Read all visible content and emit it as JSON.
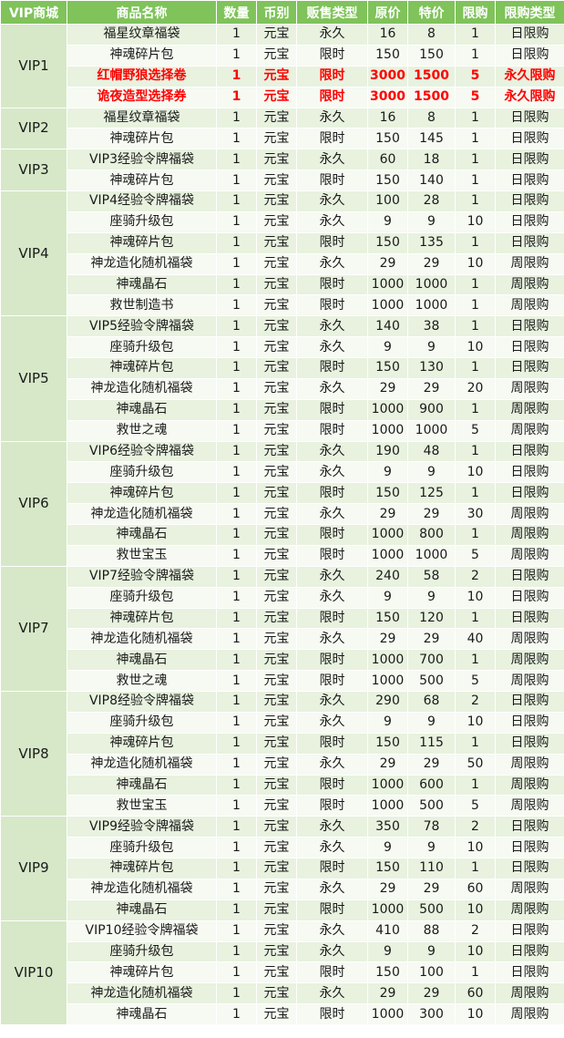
{
  "headers": [
    "VIP商城",
    "商品名称",
    "数量",
    "币别",
    "贩售类型",
    "原价",
    "特价",
    "限购",
    "限购类型"
  ],
  "colors": {
    "header_bg": "#7fc35a",
    "highlight_text": "#ff0000",
    "row_odd": "#e8f2df",
    "row_even": "#f6faf2"
  },
  "groups": [
    {
      "vip": "VIP1",
      "rows": [
        {
          "name": "福星纹章福袋",
          "qty": "1",
          "currency": "元宝",
          "sale_type": "永久",
          "orig": "16",
          "special": "8",
          "limit": "1",
          "limit_type": "日限购",
          "highlight": false
        },
        {
          "name": "神魂碎片包",
          "qty": "1",
          "currency": "元宝",
          "sale_type": "限时",
          "orig": "150",
          "special": "150",
          "limit": "1",
          "limit_type": "日限购",
          "highlight": false
        },
        {
          "name": "红帽野狼选择卷",
          "qty": "1",
          "currency": "元宝",
          "sale_type": "限时",
          "orig": "3000",
          "special": "1500",
          "limit": "5",
          "limit_type": "永久限购",
          "highlight": true
        },
        {
          "name": "诡夜造型选择券",
          "qty": "1",
          "currency": "元宝",
          "sale_type": "限时",
          "orig": "3000",
          "special": "1500",
          "limit": "5",
          "limit_type": "永久限购",
          "highlight": true
        }
      ]
    },
    {
      "vip": "VIP2",
      "rows": [
        {
          "name": "福星纹章福袋",
          "qty": "1",
          "currency": "元宝",
          "sale_type": "永久",
          "orig": "16",
          "special": "8",
          "limit": "1",
          "limit_type": "日限购",
          "highlight": false
        },
        {
          "name": "神魂碎片包",
          "qty": "1",
          "currency": "元宝",
          "sale_type": "限时",
          "orig": "150",
          "special": "145",
          "limit": "1",
          "limit_type": "日限购",
          "highlight": false
        }
      ]
    },
    {
      "vip": "VIP3",
      "rows": [
        {
          "name": "VIP3经验令牌福袋",
          "qty": "1",
          "currency": "元宝",
          "sale_type": "永久",
          "orig": "60",
          "special": "18",
          "limit": "1",
          "limit_type": "日限购",
          "highlight": false
        },
        {
          "name": "神魂碎片包",
          "qty": "1",
          "currency": "元宝",
          "sale_type": "限时",
          "orig": "150",
          "special": "140",
          "limit": "1",
          "limit_type": "日限购",
          "highlight": false
        }
      ]
    },
    {
      "vip": "VIP4",
      "rows": [
        {
          "name": "VIP4经验令牌福袋",
          "qty": "1",
          "currency": "元宝",
          "sale_type": "永久",
          "orig": "100",
          "special": "28",
          "limit": "1",
          "limit_type": "日限购",
          "highlight": false
        },
        {
          "name": "座骑升级包",
          "qty": "1",
          "currency": "元宝",
          "sale_type": "永久",
          "orig": "9",
          "special": "9",
          "limit": "10",
          "limit_type": "日限购",
          "highlight": false
        },
        {
          "name": "神魂碎片包",
          "qty": "1",
          "currency": "元宝",
          "sale_type": "限时",
          "orig": "150",
          "special": "135",
          "limit": "1",
          "limit_type": "日限购",
          "highlight": false
        },
        {
          "name": "神龙造化随机福袋",
          "qty": "1",
          "currency": "元宝",
          "sale_type": "永久",
          "orig": "29",
          "special": "29",
          "limit": "10",
          "limit_type": "周限购",
          "highlight": false
        },
        {
          "name": "神魂晶石",
          "qty": "1",
          "currency": "元宝",
          "sale_type": "限时",
          "orig": "1000",
          "special": "1000",
          "limit": "1",
          "limit_type": "周限购",
          "highlight": false
        },
        {
          "name": "救世制造书",
          "qty": "1",
          "currency": "元宝",
          "sale_type": "限时",
          "orig": "1000",
          "special": "1000",
          "limit": "1",
          "limit_type": "周限购",
          "highlight": false
        }
      ]
    },
    {
      "vip": "VIP5",
      "rows": [
        {
          "name": "VIP5经验令牌福袋",
          "qty": "1",
          "currency": "元宝",
          "sale_type": "永久",
          "orig": "140",
          "special": "38",
          "limit": "1",
          "limit_type": "日限购",
          "highlight": false
        },
        {
          "name": "座骑升级包",
          "qty": "1",
          "currency": "元宝",
          "sale_type": "永久",
          "orig": "9",
          "special": "9",
          "limit": "10",
          "limit_type": "日限购",
          "highlight": false
        },
        {
          "name": "神魂碎片包",
          "qty": "1",
          "currency": "元宝",
          "sale_type": "限时",
          "orig": "150",
          "special": "130",
          "limit": "1",
          "limit_type": "日限购",
          "highlight": false
        },
        {
          "name": "神龙造化随机福袋",
          "qty": "1",
          "currency": "元宝",
          "sale_type": "永久",
          "orig": "29",
          "special": "29",
          "limit": "20",
          "limit_type": "周限购",
          "highlight": false
        },
        {
          "name": "神魂晶石",
          "qty": "1",
          "currency": "元宝",
          "sale_type": "限时",
          "orig": "1000",
          "special": "900",
          "limit": "1",
          "limit_type": "周限购",
          "highlight": false
        },
        {
          "name": "救世之魂",
          "qty": "1",
          "currency": "元宝",
          "sale_type": "限时",
          "orig": "1000",
          "special": "1000",
          "limit": "5",
          "limit_type": "周限购",
          "highlight": false
        }
      ]
    },
    {
      "vip": "VIP6",
      "rows": [
        {
          "name": "VIP6经验令牌福袋",
          "qty": "1",
          "currency": "元宝",
          "sale_type": "永久",
          "orig": "190",
          "special": "48",
          "limit": "1",
          "limit_type": "日限购",
          "highlight": false
        },
        {
          "name": "座骑升级包",
          "qty": "1",
          "currency": "元宝",
          "sale_type": "永久",
          "orig": "9",
          "special": "9",
          "limit": "10",
          "limit_type": "日限购",
          "highlight": false
        },
        {
          "name": "神魂碎片包",
          "qty": "1",
          "currency": "元宝",
          "sale_type": "限时",
          "orig": "150",
          "special": "125",
          "limit": "1",
          "limit_type": "日限购",
          "highlight": false
        },
        {
          "name": "神龙造化随机福袋",
          "qty": "1",
          "currency": "元宝",
          "sale_type": "永久",
          "orig": "29",
          "special": "29",
          "limit": "30",
          "limit_type": "周限购",
          "highlight": false
        },
        {
          "name": "神魂晶石",
          "qty": "1",
          "currency": "元宝",
          "sale_type": "限时",
          "orig": "1000",
          "special": "800",
          "limit": "1",
          "limit_type": "周限购",
          "highlight": false
        },
        {
          "name": "救世宝玉",
          "qty": "1",
          "currency": "元宝",
          "sale_type": "限时",
          "orig": "1000",
          "special": "1000",
          "limit": "5",
          "limit_type": "周限购",
          "highlight": false
        }
      ]
    },
    {
      "vip": "VIP7",
      "rows": [
        {
          "name": "VIP7经验令牌福袋",
          "qty": "1",
          "currency": "元宝",
          "sale_type": "永久",
          "orig": "240",
          "special": "58",
          "limit": "2",
          "limit_type": "日限购",
          "highlight": false
        },
        {
          "name": "座骑升级包",
          "qty": "1",
          "currency": "元宝",
          "sale_type": "永久",
          "orig": "9",
          "special": "9",
          "limit": "10",
          "limit_type": "日限购",
          "highlight": false
        },
        {
          "name": "神魂碎片包",
          "qty": "1",
          "currency": "元宝",
          "sale_type": "限时",
          "orig": "150",
          "special": "120",
          "limit": "1",
          "limit_type": "日限购",
          "highlight": false
        },
        {
          "name": "神龙造化随机福袋",
          "qty": "1",
          "currency": "元宝",
          "sale_type": "永久",
          "orig": "29",
          "special": "29",
          "limit": "40",
          "limit_type": "周限购",
          "highlight": false
        },
        {
          "name": "神魂晶石",
          "qty": "1",
          "currency": "元宝",
          "sale_type": "限时",
          "orig": "1000",
          "special": "700",
          "limit": "1",
          "limit_type": "周限购",
          "highlight": false
        },
        {
          "name": "救世之魂",
          "qty": "1",
          "currency": "元宝",
          "sale_type": "限时",
          "orig": "1000",
          "special": "500",
          "limit": "5",
          "limit_type": "周限购",
          "highlight": false
        }
      ]
    },
    {
      "vip": "VIP8",
      "rows": [
        {
          "name": "VIP8经验令牌福袋",
          "qty": "1",
          "currency": "元宝",
          "sale_type": "永久",
          "orig": "290",
          "special": "68",
          "limit": "2",
          "limit_type": "日限购",
          "highlight": false
        },
        {
          "name": "座骑升级包",
          "qty": "1",
          "currency": "元宝",
          "sale_type": "永久",
          "orig": "9",
          "special": "9",
          "limit": "10",
          "limit_type": "日限购",
          "highlight": false
        },
        {
          "name": "神魂碎片包",
          "qty": "1",
          "currency": "元宝",
          "sale_type": "限时",
          "orig": "150",
          "special": "115",
          "limit": "1",
          "limit_type": "日限购",
          "highlight": false
        },
        {
          "name": "神龙造化随机福袋",
          "qty": "1",
          "currency": "元宝",
          "sale_type": "永久",
          "orig": "29",
          "special": "29",
          "limit": "50",
          "limit_type": "周限购",
          "highlight": false
        },
        {
          "name": "神魂晶石",
          "qty": "1",
          "currency": "元宝",
          "sale_type": "限时",
          "orig": "1000",
          "special": "600",
          "limit": "1",
          "limit_type": "周限购",
          "highlight": false
        },
        {
          "name": "救世宝玉",
          "qty": "1",
          "currency": "元宝",
          "sale_type": "限时",
          "orig": "1000",
          "special": "500",
          "limit": "5",
          "limit_type": "周限购",
          "highlight": false
        }
      ]
    },
    {
      "vip": "VIP9",
      "rows": [
        {
          "name": "VIP9经验令牌福袋",
          "qty": "1",
          "currency": "元宝",
          "sale_type": "永久",
          "orig": "350",
          "special": "78",
          "limit": "2",
          "limit_type": "日限购",
          "highlight": false
        },
        {
          "name": "座骑升级包",
          "qty": "1",
          "currency": "元宝",
          "sale_type": "永久",
          "orig": "9",
          "special": "9",
          "limit": "10",
          "limit_type": "日限购",
          "highlight": false
        },
        {
          "name": "神魂碎片包",
          "qty": "1",
          "currency": "元宝",
          "sale_type": "限时",
          "orig": "150",
          "special": "110",
          "limit": "1",
          "limit_type": "日限购",
          "highlight": false
        },
        {
          "name": "神龙造化随机福袋",
          "qty": "1",
          "currency": "元宝",
          "sale_type": "永久",
          "orig": "29",
          "special": "29",
          "limit": "60",
          "limit_type": "周限购",
          "highlight": false
        },
        {
          "name": "神魂晶石",
          "qty": "1",
          "currency": "元宝",
          "sale_type": "限时",
          "orig": "1000",
          "special": "500",
          "limit": "10",
          "limit_type": "周限购",
          "highlight": false
        }
      ]
    },
    {
      "vip": "VIP10",
      "rows": [
        {
          "name": "VIP10经验令牌福袋",
          "qty": "1",
          "currency": "元宝",
          "sale_type": "永久",
          "orig": "410",
          "special": "88",
          "limit": "2",
          "limit_type": "日限购",
          "highlight": false
        },
        {
          "name": "座骑升级包",
          "qty": "1",
          "currency": "元宝",
          "sale_type": "永久",
          "orig": "9",
          "special": "9",
          "limit": "10",
          "limit_type": "日限购",
          "highlight": false
        },
        {
          "name": "神魂碎片包",
          "qty": "1",
          "currency": "元宝",
          "sale_type": "限时",
          "orig": "150",
          "special": "100",
          "limit": "1",
          "limit_type": "日限购",
          "highlight": false
        },
        {
          "name": "神龙造化随机福袋",
          "qty": "1",
          "currency": "元宝",
          "sale_type": "永久",
          "orig": "29",
          "special": "29",
          "limit": "60",
          "limit_type": "周限购",
          "highlight": false
        },
        {
          "name": "神魂晶石",
          "qty": "1",
          "currency": "元宝",
          "sale_type": "限时",
          "orig": "1000",
          "special": "300",
          "limit": "10",
          "limit_type": "周限购",
          "highlight": false
        }
      ]
    }
  ]
}
